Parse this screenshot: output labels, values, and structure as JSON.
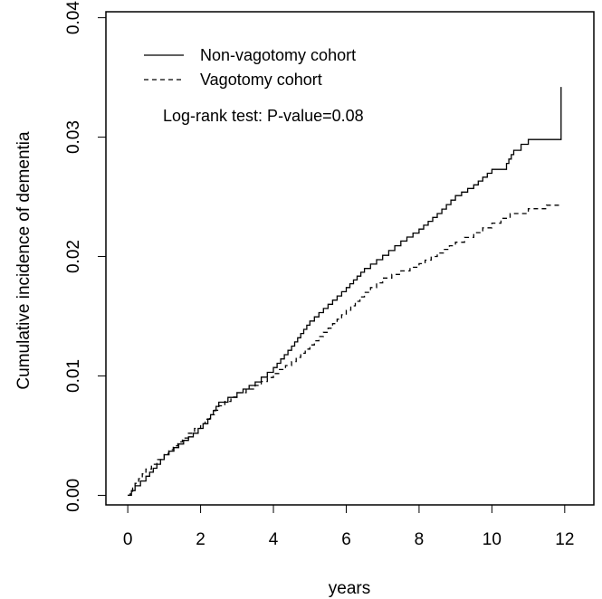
{
  "chart_data": {
    "type": "line",
    "xlabel": "years",
    "ylabel": "Cumulative incidence of dementia",
    "xlim": [
      -0.6,
      12.8
    ],
    "ylim": [
      -0.0008,
      0.0405
    ],
    "x_ticks": [
      0,
      2,
      4,
      6,
      8,
      10,
      12
    ],
    "x_tick_labels": [
      "0",
      "2",
      "4",
      "6",
      "8",
      "10",
      "12"
    ],
    "y_ticks": [
      0.0,
      0.01,
      0.02,
      0.03,
      0.04
    ],
    "y_tick_labels": [
      "0.00",
      "0.01",
      "0.02",
      "0.03",
      "0.04"
    ],
    "grid": false,
    "legend_position": "top-left",
    "annotation": "Log-rank test: P-value=0.08",
    "series": [
      {
        "name": "Non-vagotomy cohort",
        "line_style": "solid",
        "x": [
          0,
          0.2,
          0.5,
          0.8,
          1.0,
          1.4,
          1.8,
          2.2,
          2.5,
          3.0,
          3.5,
          4.0,
          4.5,
          5.0,
          5.5,
          6.0,
          6.5,
          7.0,
          7.5,
          8.0,
          8.5,
          9.0,
          9.5,
          10.0,
          10.4,
          10.6,
          10.8,
          11.0,
          11.9,
          11.9
        ],
        "y": [
          0.0,
          0.0008,
          0.0016,
          0.0026,
          0.0034,
          0.0043,
          0.0052,
          0.0064,
          0.0078,
          0.0086,
          0.0095,
          0.0107,
          0.0125,
          0.0146,
          0.016,
          0.0174,
          0.019,
          0.0201,
          0.0213,
          0.0223,
          0.0236,
          0.0251,
          0.026,
          0.0273,
          0.0278,
          0.0289,
          0.0294,
          0.0298,
          0.0298,
          0.0342
        ]
      },
      {
        "name": "Vagotomy cohort",
        "line_style": "dashed",
        "x": [
          0,
          0.2,
          0.5,
          0.8,
          1.0,
          1.5,
          2.0,
          2.5,
          3.0,
          3.5,
          4.0,
          4.5,
          5.0,
          5.5,
          6.0,
          6.5,
          7.0,
          7.5,
          8.0,
          8.5,
          9.0,
          9.5,
          10.0,
          10.5,
          11.0,
          11.5,
          11.9
        ],
        "y": [
          0.0,
          0.001,
          0.0022,
          0.003,
          0.0035,
          0.0048,
          0.006,
          0.0075,
          0.0086,
          0.0092,
          0.0102,
          0.0112,
          0.0126,
          0.014,
          0.0155,
          0.017,
          0.0182,
          0.0188,
          0.0194,
          0.0203,
          0.0212,
          0.022,
          0.0228,
          0.0236,
          0.024,
          0.0243,
          0.0243
        ]
      }
    ]
  }
}
